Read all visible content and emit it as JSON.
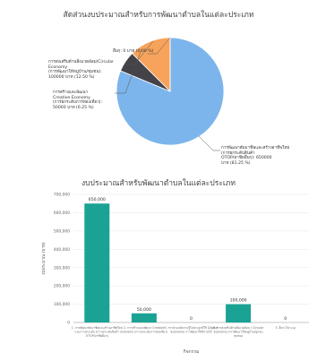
{
  "pie_chart": {
    "title": "สัดส่วนงบประมาณสำหรับการพัฒนาตำบลในแต่ละประเภท",
    "labels": [
      {
        "lines": [
          "อื่นๆ: 0 บาท (0.00 %)"
        ]
      },
      {
        "lines": [
          "การส่งเสริมด้านสิ่งแวดล้อม/Circular",
          "Economy",
          "(การพัฒนาให้หมู่บ้าน/ชุมชน):",
          "100000 บาท (12.50 %)"
        ]
      },
      {
        "lines": [
          "การสร้างและพัฒนา",
          "Creative Economy",
          "(การยกระดับการท่องเที่ยว):",
          "50000 บาท (6.25 %)"
        ]
      },
      {
        "lines": [
          "การพัฒนาสัมมาชีพและสร้างอาชีพใหม่",
          "(การยกระดับสินค้า",
          "OTOP/อาชีพอื่นๆ): 650000",
          "บาท (81.25 %)"
        ]
      }
    ]
  },
  "chart_data": [
    {
      "type": "pie",
      "title": "สัดส่วนงบประมาณสำหรับการพัฒนาตำบลในแต่ละประเภท",
      "slices": [
        {
          "label": "การพัฒนาสัมมาชีพและสร้างอาชีพใหม่ (การยกระดับสินค้า OTOP/อาชีพอื่นๆ)",
          "value": 650000,
          "percent": 81.25,
          "color": "#7cb5ec"
        },
        {
          "label": "การสร้างและพัฒนา Creative Economy (การยกระดับการท่องเที่ยว)",
          "value": 50000,
          "percent": 6.25,
          "color": "#434348"
        },
        {
          "label": "การส่งเสริมด้านสิ่งแวดล้อม/Circular Economy (การพัฒนาให้หมู่บ้าน/ชุมชน)",
          "value": 100000,
          "percent": 12.5,
          "color": "#f7a35c"
        },
        {
          "label": "อื่นๆ",
          "value": 0,
          "percent": 0.0,
          "color": "#90ed7d"
        }
      ]
    },
    {
      "type": "bar",
      "title": "งบประมาณสำหรับพัฒนาตำบลในแต่ละประเภท",
      "xlabel": "กิจกรรม",
      "ylabel": "งบประมาณ (บาท)",
      "ylim": [
        0,
        700000
      ],
      "yticks": [
        0,
        100000,
        200000,
        300000,
        400000,
        500000,
        600000,
        700000
      ],
      "ytick_labels": [
        "0",
        "100,000",
        "200,000",
        "300,000",
        "400,000",
        "500,000",
        "600,000",
        "700,000"
      ],
      "categories": [
        {
          "lines": [
            "1. การพัฒนาสัมมาชีพและสร้างอาชีพใหม่",
            "และการยกระดับ (การยกระดับสินค้า",
            "OTOP/อาชีพอื่นๆ)"
          ]
        },
        {
          "lines": [
            "2. การสร้างและพัฒนา Creative",
            "Economy (การยกระดับการท่องเที่ยว)"
          ]
        },
        {
          "lines": [
            "3. การนำองค์ความรู้ไปประยุกต์ใช้ (Digital",
            "Economy) การพัฒนาให้มีรายได้"
          ]
        },
        {
          "lines": [
            "4. การส่งเสริมด้านสิ่งแวดล้อม / Circular",
            "Economy (การพัฒนาให้หมู่บ้าน/ชุมชน",
            "ชุมชน)"
          ]
        },
        {
          "lines": [
            "5. อื่นๆ (ไม่ระบุ)"
          ]
        }
      ],
      "values": [
        650000,
        50000,
        0,
        100000,
        0
      ],
      "value_labels": [
        "650,000",
        "50,000",
        "0",
        "100,000",
        "0"
      ],
      "bar_color": "#1aa394"
    }
  ]
}
